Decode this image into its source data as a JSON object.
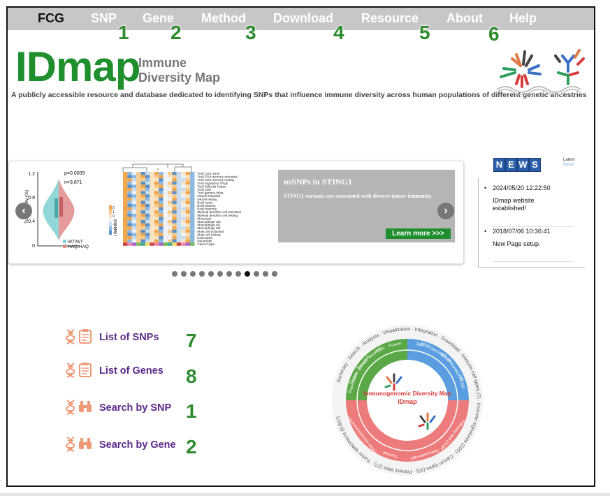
{
  "nav": {
    "brand": "FCG",
    "items": [
      {
        "label": "SNP",
        "num": "1"
      },
      {
        "label": "Gene",
        "num": "2"
      },
      {
        "label": "Method",
        "num": "3"
      },
      {
        "label": "Download",
        "num": "4"
      },
      {
        "label": "Resource",
        "num": "5"
      },
      {
        "label": "About",
        "num": "6"
      },
      {
        "label": "Help",
        "num": ""
      }
    ]
  },
  "header": {
    "logo": "IDmap",
    "subtitle_line1": "Immune",
    "subtitle_line2": "Diversity Map",
    "tagline": "A publicly accessible resource and database dedicated to identifying SNPs that influence immune diversity across human populations of different genetic ancestries"
  },
  "carousel": {
    "violin": {
      "p_value": "p=0.0009",
      "n_value": "n=3,871",
      "y_label": "Tumor purity (%)",
      "y_ticks": [
        "1.2",
        "0.8",
        "0.4",
        "0"
      ],
      "legend": [
        "WT/WT",
        "HAQ/HAQ"
      ],
      "colors": {
        "wt": "#7fd0d0",
        "haq": "#e08a8a"
      }
    },
    "heatmap": {
      "rows": [
        "Tcell CD4 naive",
        "Tcell CD4 memory activated",
        "Tcell CD4 memory resting",
        "Tcell regulatory Tregs",
        "Tcell follicular helper",
        "Tcell CD8",
        "Tcell gamma delta",
        "NKcell activated",
        "NKcell resting",
        "Bcell naive",
        "Bcell plasma",
        "Bcell memory",
        "Myeloid dendritic cell activated",
        "Myeloid dendritic cell resting",
        "Monocyte",
        "Macrophage M0",
        "Macrophage M1",
        "Macrophage M2",
        "Mast cell activated",
        "Mast cell resting",
        "Eosinophil",
        "Neutrophil",
        "Cancer type"
      ],
      "scale_label": "t statistics",
      "scale_ticks": [
        "2",
        "1",
        "0",
        "-1",
        "-2",
        "-3",
        "-4"
      ]
    },
    "slide": {
      "title": "nsSNPs in STING1",
      "text": "STING1 variants are associated with diverse tumor immunity.",
      "button": "Learn more >>>"
    },
    "prev_icon": "chevron-left-icon",
    "next_icon": "chevron-right-icon",
    "dot_count": 12,
    "active_dot": 8
  },
  "news": {
    "badge": [
      "N",
      "E",
      "W",
      "S"
    ],
    "latest_label": "Latest",
    "latest_sub": "News",
    "items": [
      {
        "date": "2024/05/20 12:22:50",
        "text": "IDmap website established!"
      },
      {
        "date": "2018/07/06 10:36:41",
        "text": "New Page setup."
      }
    ]
  },
  "links": [
    {
      "label": "List of SNPs",
      "num": "7",
      "icon": "clipboard-icon"
    },
    {
      "label": "List of Genes",
      "num": "8",
      "icon": "clipboard-icon"
    },
    {
      "label": "Search by SNP",
      "num": "1",
      "icon": "binoculars-icon"
    },
    {
      "label": "Search by Gene",
      "num": "2",
      "icon": "binoculars-icon"
    }
  ],
  "circle": {
    "center_title": "Immunogenomic Diversity Map",
    "center_sub": "IDmap",
    "outer_text": "Summary · Search · Analysis · Visualization · Integration · Download · Immune cell types (7) · Immune signatures (105) · Cancer types (33) · Primary sites (27) · Tumor specimens (9,807)",
    "segments_top_left": [
      "Expression",
      "Genetic alteration",
      "Somatic Mutation",
      "CNV",
      "Fusion"
    ],
    "segments_top_right": [
      "EBI",
      "1000 Genomes",
      "dbSNP",
      "ImmuneCellAI",
      "TCGA"
    ],
    "segments_bottom": [
      "Pathway and Drugs",
      "Immunotherapy",
      "Survival",
      "Tumor microenvironment"
    ],
    "colors": {
      "green": "#5aa846",
      "blue": "#5b9ee0",
      "red": "#ee7b7b"
    }
  },
  "colors": {
    "accent_green": "#1f8f2e",
    "nav_bg": "#c7c7c7",
    "link_purple": "#5a2a8a",
    "icon_orange": "#ee9a78"
  }
}
